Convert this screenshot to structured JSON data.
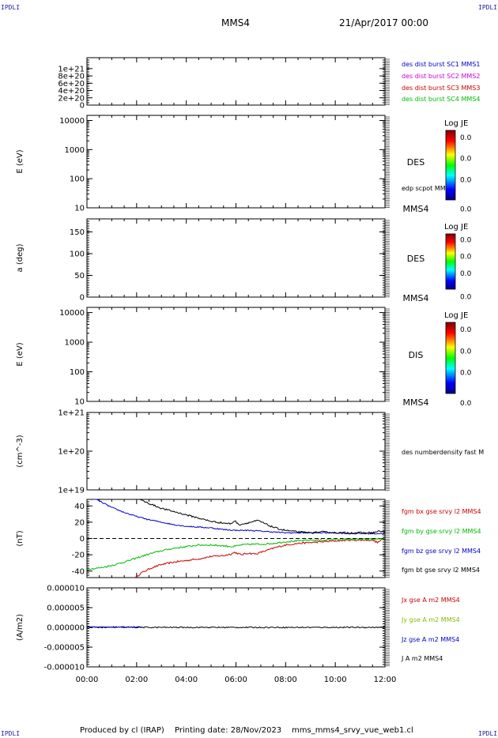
{
  "corners": {
    "tl": "IPDLI",
    "tr": "IPDLI",
    "bl": "IPDLI",
    "br": "IPDLI"
  },
  "header": {
    "spacecraft": "MMS4",
    "date": "21/Apr/2017 00:00"
  },
  "footer": {
    "produced": "Produced by cl (IRAP)",
    "printing": "Printing date: 28/Nov/2023",
    "file": "mms_mms4_srvy_vue_web1.cl"
  },
  "colors": {
    "blue": "#0000cc",
    "magenta": "#cc00cc",
    "red": "#cc0000",
    "green": "#00bb00",
    "black": "#000000"
  },
  "colorbar_title": "Log JE",
  "chart_data": [
    {
      "type": "line",
      "panel": "dist",
      "ylabel": "",
      "ylim": [
        0,
        1.3e+21
      ],
      "yticks": [
        {
          "v": 1e+21,
          "label": "1e+21"
        },
        {
          "v": 8e+20,
          "label": "8e+20"
        },
        {
          "v": 6e+20,
          "label": "6e+20"
        },
        {
          "v": 4e+20,
          "label": "4e+20"
        },
        {
          "v": 2e+20,
          "label": "2e+20"
        },
        {
          "v": 0,
          "label": "0"
        }
      ],
      "zero_line": true,
      "labels": [
        {
          "text": "des dist burst SC1 MMS1",
          "color": "#0000cc"
        },
        {
          "text": "des dist burst SC2 MMS2",
          "color": "#cc00cc"
        },
        {
          "text": "des dist burst SC3 MMS3",
          "color": "#cc0000"
        },
        {
          "text": "des dist burst SC4 MMS4",
          "color": "#00bb00"
        }
      ],
      "series": []
    },
    {
      "type": "heatmap",
      "panel": "des-energy",
      "scale": "log",
      "ylabel": "E (eV)",
      "ylim": [
        10,
        15000
      ],
      "yticks": [
        {
          "v": 10000,
          "label": "10000"
        },
        {
          "v": 1000,
          "label": "1000"
        },
        {
          "v": 100,
          "label": "100"
        },
        {
          "v": 10,
          "label": "10"
        }
      ],
      "label": "DES",
      "spacecraft": "MMS4",
      "overlay": "edp scpot MMS4",
      "colorbar": {
        "title": "Log JE",
        "ticks": [
          "0.0",
          "0.0",
          "0.0",
          "0.0"
        ]
      }
    },
    {
      "type": "heatmap",
      "panel": "des-pitch",
      "ylabel": "a (deg)",
      "ylim": [
        0,
        180
      ],
      "yticks": [
        {
          "v": 150,
          "label": "150"
        },
        {
          "v": 100,
          "label": "100"
        },
        {
          "v": 50,
          "label": "50"
        },
        {
          "v": 0,
          "label": "0"
        }
      ],
      "label": "DES",
      "spacecraft": "MMS4",
      "colorbar": {
        "title": "Log JE",
        "ticks": [
          "0.0",
          "0.0",
          "0.0",
          "0.0"
        ]
      }
    },
    {
      "type": "heatmap",
      "panel": "dis-energy",
      "scale": "log",
      "ylabel": "E (eV)",
      "ylim": [
        10,
        15000
      ],
      "yticks": [
        {
          "v": 10000,
          "label": "10000"
        },
        {
          "v": 1000,
          "label": "1000"
        },
        {
          "v": 100,
          "label": "100"
        },
        {
          "v": 10,
          "label": "10"
        }
      ],
      "label": "DIS",
      "spacecraft": "MMS4",
      "colorbar": {
        "title": "Log JE",
        "ticks": [
          "0.0",
          "0.0",
          "0.0",
          "0.0"
        ]
      }
    },
    {
      "type": "line",
      "panel": "density",
      "scale": "log",
      "ylabel": "(cm^-3)",
      "ylim": [
        1e+19,
        1e+21
      ],
      "yticks": [
        {
          "v": 1e+21,
          "label": "1e+21"
        },
        {
          "v": 1e+20,
          "label": "1e+20"
        },
        {
          "v": 1e+19,
          "label": "1e+19"
        }
      ],
      "labels": [
        {
          "text": "des numberdensity fast M",
          "color": "#000000"
        }
      ],
      "series": []
    },
    {
      "type": "line",
      "panel": "fgm",
      "ylabel": "(nT)",
      "ylim": [
        -48,
        48
      ],
      "yticks": [
        {
          "v": 40,
          "label": "40"
        },
        {
          "v": 20,
          "label": "20"
        },
        {
          "v": 0,
          "label": "0"
        },
        {
          "v": -20,
          "label": "-20"
        },
        {
          "v": -40,
          "label": "-40"
        }
      ],
      "zero_line": true,
      "labels": [
        {
          "text": "fgm bx gse srvy l2 MMS4",
          "color": "#cc0000"
        },
        {
          "text": "fgm by gse srvy l2 MMS4",
          "color": "#00bb00"
        },
        {
          "text": "fgm bz gse srvy l2 MMS4",
          "color": "#0000cc"
        },
        {
          "text": "fgm bt gse srvy l2 MMS4",
          "color": "#000000"
        }
      ],
      "series": [
        {
          "name": "fgm bx gse srvy l2 MMS4",
          "color": "#cc0000",
          "noise": 1.0,
          "x": [
            1.95,
            2.2,
            2.6,
            3.0,
            3.5,
            4.0,
            4.5,
            5.0,
            5.5,
            5.8,
            5.95,
            6.2,
            6.5,
            6.8,
            7.0,
            7.3,
            7.6,
            8.0,
            8.5,
            9.0,
            9.5,
            10.0,
            10.5,
            11.0,
            11.5,
            11.7,
            11.9,
            12.0
          ],
          "y": [
            -48,
            -42,
            -36,
            -32,
            -29,
            -27,
            -25,
            -22,
            -21,
            -19,
            -17,
            -20,
            -18,
            -19,
            -17,
            -14,
            -11,
            -8,
            -6,
            -5,
            -4,
            -3,
            -2,
            -2,
            -2,
            -5,
            -1,
            0
          ]
        },
        {
          "name": "fgm by gse srvy l2 MMS4",
          "color": "#00bb00",
          "noise": 1.0,
          "x": [
            0,
            0.3,
            0.7,
            1.0,
            1.5,
            2.0,
            2.5,
            3.0,
            3.5,
            4.0,
            4.5,
            5.0,
            5.5,
            5.9,
            6.2,
            6.6,
            7.0,
            7.5,
            8.0,
            8.5,
            9.0,
            9.5,
            10.0,
            10.5,
            11.0,
            11.5,
            12.0
          ],
          "y": [
            -37,
            -37,
            -35,
            -33,
            -29,
            -24,
            -19,
            -15,
            -12,
            -10,
            -8,
            -8,
            -9,
            -10,
            -8,
            -7,
            -7,
            -6,
            -4,
            -3,
            -2,
            -2,
            -1,
            -1,
            -1,
            -1,
            0
          ]
        },
        {
          "name": "fgm bz gse srvy l2 MMS4",
          "color": "#0000cc",
          "noise": 0.7,
          "x": [
            0.25,
            0.5,
            1.0,
            1.5,
            2.0,
            2.5,
            3.0,
            3.5,
            4.0,
            4.5,
            5.0,
            5.5,
            6.0,
            6.5,
            7.0,
            7.5,
            8.0,
            8.5,
            9.0,
            9.5,
            10.0,
            10.5,
            11.0,
            11.5,
            12.0
          ],
          "y": [
            50,
            46,
            38,
            32,
            27,
            23,
            20,
            17,
            15,
            14,
            13,
            11,
            10,
            10,
            9,
            8,
            7,
            7,
            7,
            7,
            7,
            6,
            6,
            6,
            6
          ]
        },
        {
          "name": "fgm bt gse srvy l2 MMS4",
          "color": "#000000",
          "noise": 1.0,
          "x": [
            2.1,
            2.5,
            3.0,
            3.5,
            4.0,
            4.5,
            5.0,
            5.5,
            5.8,
            5.95,
            6.1,
            6.3,
            6.6,
            6.9,
            7.1,
            7.4,
            7.7,
            8.0,
            8.5,
            9.0,
            9.5,
            10.0,
            10.5,
            11.0,
            11.5,
            11.8,
            12.0
          ],
          "y": [
            48,
            43,
            37,
            33,
            29,
            25,
            21,
            19,
            18,
            22,
            17,
            18,
            20,
            22,
            19,
            15,
            12,
            10,
            8,
            7,
            8,
            7,
            7,
            7,
            7,
            9,
            8
          ]
        }
      ]
    },
    {
      "type": "line",
      "panel": "current",
      "ylabel": "(A/m2)",
      "ylim": [
        -1e-05,
        1e-05
      ],
      "yticks": [
        {
          "v": 1e-05,
          "label": "0.000010"
        },
        {
          "v": 5e-06,
          "label": "0.000005"
        },
        {
          "v": 0,
          "label": "0.000000"
        },
        {
          "v": -5e-06,
          "label": "-0.000005"
        },
        {
          "v": -1e-05,
          "label": "-0.000010"
        }
      ],
      "labels": [
        {
          "text": "Jx gse A m2 MMS4",
          "color": "#cc0000"
        },
        {
          "text": "Jy gse A m2 MMS4",
          "color": "#88bb00"
        },
        {
          "text": "Jz gse A m2 MMS4",
          "color": "#0000cc"
        },
        {
          "text": "J A m2 MMS4",
          "color": "#000000"
        }
      ],
      "series": [
        {
          "name": "J A m2 MMS4",
          "color": "#000000",
          "noise": 1.5e-07,
          "x": [
            0,
            12
          ],
          "y": [
            0,
            0
          ]
        },
        {
          "name": "Jz gse A m2 MMS4",
          "color": "#0000cc",
          "noise": 1e-07,
          "x": [
            0,
            2.2
          ],
          "y": [
            1e-07,
            1e-07
          ]
        }
      ],
      "xlim": [
        0,
        12
      ],
      "xticks": [
        {
          "v": 0,
          "label": "00:00"
        },
        {
          "v": 2,
          "label": "02:00"
        },
        {
          "v": 4,
          "label": "04:00"
        },
        {
          "v": 6,
          "label": "06:00"
        },
        {
          "v": 8,
          "label": "08:00"
        },
        {
          "v": 10,
          "label": "10:00"
        },
        {
          "v": 12,
          "label": "12:00"
        }
      ]
    }
  ]
}
